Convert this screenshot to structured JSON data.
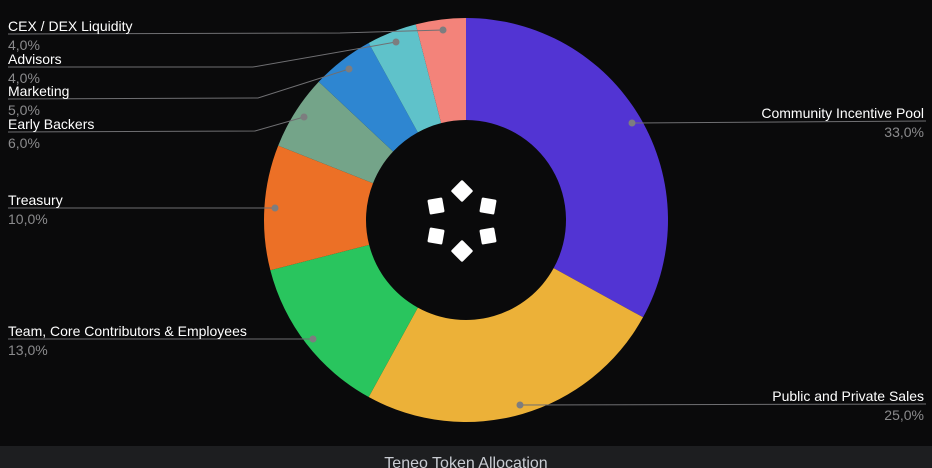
{
  "title_bar": {
    "text": "Teneo Token Allocation"
  },
  "chart_data": {
    "type": "pie",
    "donut": true,
    "title": "Teneo Token Allocation",
    "start_angle_deg": 0,
    "direction": "clockwise",
    "number_format": "comma-decimal",
    "background": "#0a0a0b",
    "label_color": "#ffffff",
    "percent_color": "#8b8b8d",
    "leader_line_color": "#6f6f72",
    "leader_dot_color": "#7d7d7f",
    "center_logo": "teneo-diamonds-logo",
    "slices": [
      {
        "label": "Community Incentive Pool",
        "value": 33.0,
        "pct_label": "33,0%",
        "color": "#5234d3"
      },
      {
        "label": "Public and Private Sales",
        "value": 25.0,
        "pct_label": "25,0%",
        "color": "#ecb138"
      },
      {
        "label": "Team, Core Contributors & Employees",
        "value": 13.0,
        "pct_label": "13,0%",
        "color": "#29c55e"
      },
      {
        "label": "Treasury",
        "value": 10.0,
        "pct_label": "10,0%",
        "color": "#ec7026"
      },
      {
        "label": "Early Backers",
        "value": 6.0,
        "pct_label": "6,0%",
        "color": "#74a489"
      },
      {
        "label": "Marketing",
        "value": 5.0,
        "pct_label": "5,0%",
        "color": "#2e86d1"
      },
      {
        "label": "Advisors",
        "value": 4.0,
        "pct_label": "4,0%",
        "color": "#5fc2ca"
      },
      {
        "label": "CEX / DEX Liquidity",
        "value": 4.0,
        "pct_label": "4,0%",
        "color": "#f3837a"
      }
    ]
  }
}
